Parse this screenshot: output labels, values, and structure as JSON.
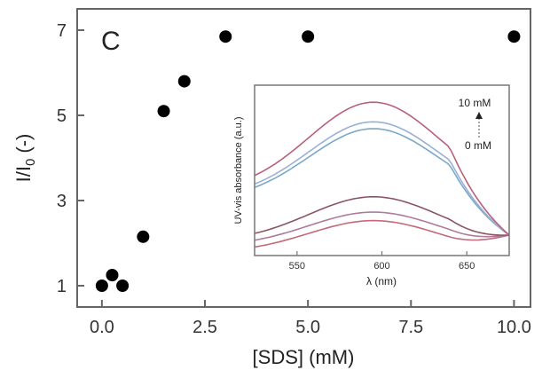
{
  "panel_label": "C",
  "chart_data": [
    {
      "type": "scatter",
      "title": "",
      "xlabel": "[SDS] (mM)",
      "ylabel": "I/I0 (-)",
      "ylabel_main": "I/I",
      "ylabel_sub": "0",
      "ylabel_suffix": " (-)",
      "xlim": [
        -0.6,
        10.4
      ],
      "ylim": [
        0.5,
        7.5
      ],
      "xticks": [
        0.0,
        2.5,
        5.0,
        7.5,
        10.0
      ],
      "xtick_labels": [
        "0.0",
        "2.5",
        "5.0",
        "7.5",
        "10.0"
      ],
      "yticks": [
        1,
        3,
        5,
        7
      ],
      "ytick_labels": [
        "1",
        "3",
        "5",
        "7"
      ],
      "grid": false,
      "marker_color": "#000000",
      "series": [
        {
          "x": [
            0.0,
            0.25,
            0.5,
            1.0,
            1.5,
            2.0,
            3.0,
            5.0,
            10.0
          ],
          "y": [
            1.0,
            1.25,
            1.0,
            2.15,
            5.1,
            5.8,
            6.85,
            6.85,
            6.85
          ]
        }
      ]
    },
    {
      "type": "line",
      "title": "",
      "xlabel": "λ (nm)",
      "ylabel": "UV-vis absorbance (a.u.)",
      "xlim": [
        525,
        675
      ],
      "ylim": [
        0,
        1
      ],
      "xticks": [
        550,
        600,
        650
      ],
      "xtick_labels": [
        "550",
        "600",
        "650"
      ],
      "grid": false,
      "annotation_top": "10 mM",
      "annotation_bottom": "0 mM",
      "series": [
        {
          "peak": 0.205,
          "base": 0.05,
          "color": "#c46a7a"
        },
        {
          "peak": 0.255,
          "base": 0.09,
          "color": "#b07a9a"
        },
        {
          "peak": 0.345,
          "base": 0.13,
          "color": "#8a5560"
        },
        {
          "peak": 0.745,
          "base": 0.4,
          "color": "#7aa8c8"
        },
        {
          "peak": 0.785,
          "base": 0.42,
          "color": "#9ab0d8"
        },
        {
          "peak": 0.9,
          "base": 0.47,
          "color": "#b8607a"
        }
      ]
    }
  ]
}
